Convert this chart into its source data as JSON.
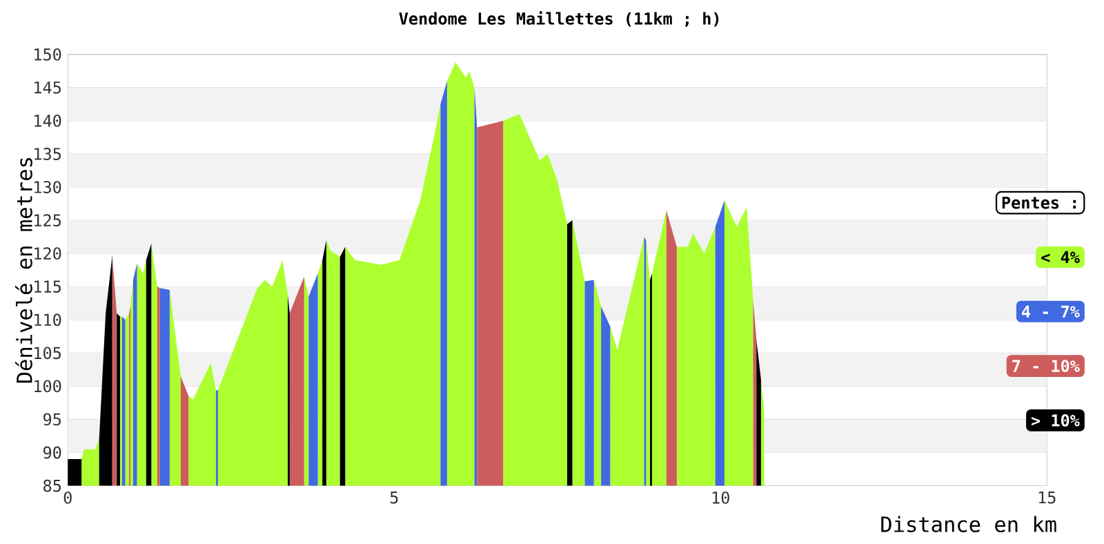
{
  "chart_data": {
    "type": "area",
    "title": "Vendome Les Maillettes (11km ; h)",
    "xlabel": "Distance en km",
    "ylabel": "Dénivelé en metres",
    "legend_title": "Pentes :",
    "xlim": [
      0,
      15
    ],
    "xticks": [
      0,
      5,
      10,
      15
    ],
    "ylim": [
      85,
      150
    ],
    "yticks": [
      85,
      90,
      95,
      100,
      105,
      110,
      115,
      120,
      125,
      130,
      135,
      140,
      145,
      150
    ],
    "grid": "y",
    "legend": "right",
    "series": [
      {
        "name": "< 4%",
        "color": "#adff2f",
        "x": [
          0.21,
          0.25,
          0.42,
          0.48,
          null,
          0.8,
          0.83,
          null,
          0.88,
          0.94,
          null,
          0.96,
          1.0,
          null,
          1.06,
          1.15,
          1.2,
          null,
          1.28,
          1.37,
          null,
          1.56,
          1.73,
          null,
          1.85,
          1.92,
          2.19,
          2.27,
          null,
          2.3,
          2.9,
          3.02,
          3.13,
          3.29,
          3.37,
          null,
          3.62,
          3.69,
          null,
          3.83,
          3.9,
          null,
          3.96,
          4.02,
          4.17,
          null,
          4.25,
          4.4,
          4.8,
          5.08,
          5.4,
          5.62,
          5.71,
          null,
          5.81,
          5.94,
          6.1,
          6.15,
          6.23,
          null,
          6.67,
          6.92,
          7.23,
          7.35,
          7.5,
          7.65,
          null,
          7.73,
          7.92,
          null,
          8.06,
          8.17,
          null,
          8.31,
          8.42,
          8.83,
          null,
          8.86,
          8.92,
          null,
          8.95,
          9.17,
          null,
          9.33,
          9.5,
          9.58,
          9.75,
          9.92,
          null,
          10.06,
          10.25,
          10.4,
          10.5,
          null,
          10.62,
          10.67
        ],
        "values": [
          89,
          90.5,
          90.5,
          92,
          null,
          110.5,
          110.5,
          null,
          110,
          111,
          null,
          112,
          116,
          null,
          118.5,
          117,
          119,
          null,
          121.5,
          115,
          null,
          114.5,
          101.5,
          null,
          98.5,
          98,
          103.5,
          99.4,
          null,
          99.4,
          114.7,
          116,
          115,
          119,
          113.7,
          null,
          116.5,
          113.5,
          null,
          117,
          119,
          null,
          122,
          120.5,
          119.5,
          null,
          121,
          119,
          118.3,
          119,
          128,
          138,
          142.5,
          null,
          146,
          148.8,
          146.5,
          147.5,
          145,
          null,
          140,
          141,
          134,
          135,
          131,
          124.4,
          null,
          125,
          115.8,
          null,
          116,
          112,
          null,
          109,
          105.5,
          122.5,
          null,
          122,
          116,
          null,
          117,
          126.5,
          null,
          121,
          121,
          123,
          120,
          124,
          null,
          128,
          124,
          127,
          113,
          null,
          101,
          96
        ]
      },
      {
        "name": "4 - 7%",
        "color": "#4169e1",
        "x": [
          0.83,
          0.88,
          null,
          1.0,
          1.06,
          null,
          1.41,
          1.56,
          null,
          2.27,
          2.3,
          null,
          3.69,
          3.83,
          null,
          5.71,
          5.81,
          null,
          6.23,
          6.27,
          null,
          7.92,
          8.06,
          null,
          8.17,
          8.31,
          null,
          8.83,
          8.86,
          null,
          9.92,
          10.06
        ],
        "values": [
          110.5,
          110,
          null,
          116,
          118.5,
          null,
          114.8,
          114.5,
          null,
          99.4,
          99.4,
          null,
          113.5,
          117,
          null,
          142.5,
          146,
          null,
          145,
          139,
          null,
          115.8,
          116,
          null,
          112,
          109,
          null,
          122.5,
          122,
          null,
          124,
          128
        ]
      },
      {
        "name": "7 - 10%",
        "color": "#cd5c5c",
        "x": [
          0.68,
          0.75,
          null,
          0.94,
          0.96,
          null,
          1.37,
          1.41,
          null,
          1.73,
          1.85,
          null,
          3.4,
          3.62,
          null,
          6.27,
          6.67,
          null,
          9.17,
          9.33,
          null,
          10.5,
          10.55
        ],
        "values": [
          119.7,
          111,
          null,
          111,
          112,
          null,
          115,
          114.8,
          null,
          101.5,
          98.5,
          null,
          111,
          116.5,
          null,
          139,
          140,
          null,
          126.5,
          121,
          null,
          113,
          107
        ]
      },
      {
        "name": "> 10%",
        "color": "#000000",
        "x": [
          0,
          0.21,
          null,
          0.48,
          0.58,
          0.65,
          0.68,
          null,
          0.75,
          0.8,
          null,
          1.2,
          1.28,
          null,
          3.37,
          3.4,
          null,
          3.9,
          3.96,
          null,
          4.17,
          4.25,
          null,
          7.65,
          7.73,
          null,
          8.92,
          8.95,
          null,
          10.55,
          10.62
        ],
        "values": [
          89,
          89,
          null,
          92,
          111,
          117,
          119.7,
          null,
          111,
          110.5,
          null,
          119,
          121.5,
          null,
          113.7,
          111,
          null,
          119,
          122,
          null,
          119.5,
          121,
          null,
          124.4,
          125,
          null,
          116,
          117,
          null,
          107,
          101
        ]
      }
    ]
  }
}
